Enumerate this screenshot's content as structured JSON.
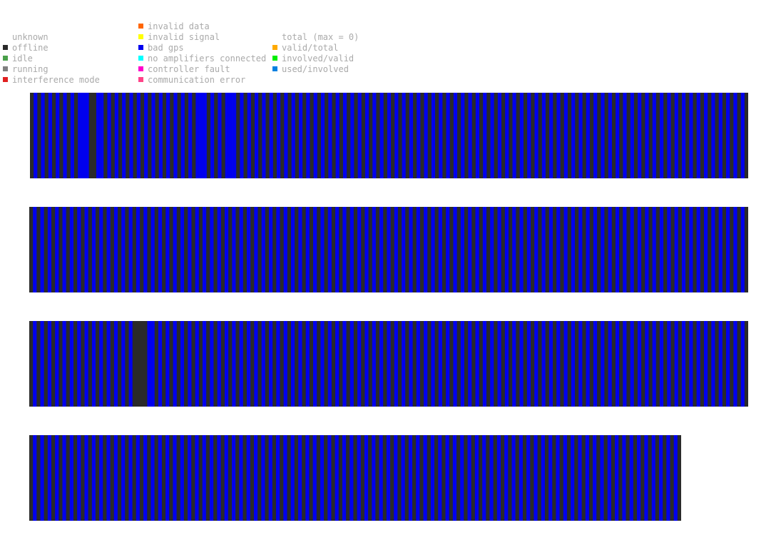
{
  "legend": {
    "columns": [
      [
        {
          "label": "unknown",
          "color": ""
        },
        {
          "label": "offline",
          "color": "#2a2a2a"
        },
        {
          "label": "idle",
          "color": "#4aa04a"
        },
        {
          "label": "running",
          "color": "#808080"
        },
        {
          "label": "interference mode",
          "color": "#e02020"
        }
      ],
      [
        {
          "label": "invalid data",
          "color": "#ff6600"
        },
        {
          "label": "invalid signal",
          "color": "#ffff00"
        },
        {
          "label": "bad gps",
          "color": "#0000ee"
        },
        {
          "label": "no amplifiers connected",
          "color": "#00ffff"
        },
        {
          "label": "controller fault",
          "color": "#ff00cc"
        },
        {
          "label": "communication error",
          "color": "#ff4488"
        }
      ],
      [
        {
          "label": "total (max = 0)",
          "color": ""
        },
        {
          "label": "valid/total",
          "color": "#ffaa00"
        },
        {
          "label": "involved/valid",
          "color": "#00ee00"
        },
        {
          "label": "used/involved",
          "color": "#0080e0"
        }
      ]
    ]
  },
  "chart_data": {
    "type": "heatmap",
    "colors": {
      "bad_gps": "#0000ee",
      "offline": "#2a2a2a"
    },
    "strips": [
      {
        "offline_stations": [
          0,
          2,
          4,
          6,
          8,
          10,
          12,
          16,
          17,
          20,
          22,
          24,
          26,
          28,
          30,
          32,
          34,
          36,
          38,
          40,
          42,
          44,
          48,
          50,
          52,
          56,
          58,
          60,
          62,
          64,
          66,
          68,
          70,
          72,
          74,
          76,
          78,
          80,
          82,
          84,
          86,
          88,
          90,
          92,
          94,
          96,
          98,
          100,
          102,
          104,
          106,
          108,
          110,
          112,
          114,
          116,
          118,
          120,
          122,
          124,
          126,
          128,
          130,
          132,
          134,
          136,
          138,
          140,
          142,
          144,
          146,
          148,
          150,
          152,
          154,
          156,
          158,
          160,
          162,
          164,
          166,
          168,
          170,
          172,
          174,
          176,
          178,
          180,
          182,
          184,
          186,
          188,
          190,
          192,
          194
        ]
      },
      {
        "offline_stations": [
          0,
          2,
          4,
          6,
          8,
          10,
          12,
          14,
          16,
          18,
          20,
          22,
          24,
          26,
          28,
          30,
          32,
          34,
          36,
          38,
          40,
          42,
          44,
          46,
          48,
          50,
          52,
          54,
          56,
          58,
          60,
          62,
          64,
          66,
          68,
          70,
          72,
          74,
          76,
          78,
          80,
          82,
          84,
          86,
          88,
          90,
          92,
          94,
          96,
          98,
          100,
          102,
          104,
          106,
          108,
          110,
          112,
          114,
          116,
          118,
          120,
          122,
          124,
          126,
          128,
          130,
          132,
          134,
          136,
          138,
          140,
          142,
          144,
          146,
          148,
          150,
          152,
          154,
          156,
          158,
          160,
          162,
          164,
          166,
          168,
          170,
          172,
          174,
          176,
          178,
          180,
          182,
          184,
          186,
          188,
          190,
          192,
          194
        ]
      },
      {
        "offline_stations": [
          0,
          2,
          4,
          6,
          8,
          10,
          12,
          14,
          16,
          18,
          20,
          22,
          24,
          26,
          28,
          29,
          30,
          31,
          34,
          36,
          38,
          40,
          42,
          44,
          46,
          48,
          50,
          52,
          54,
          56,
          58,
          60,
          62,
          64,
          66,
          68,
          70,
          72,
          74,
          76,
          78,
          80,
          82,
          84,
          86,
          88,
          90,
          92,
          94,
          96,
          98,
          100,
          102,
          104,
          106,
          108,
          110,
          112,
          114,
          116,
          118,
          120,
          122,
          124,
          126,
          128,
          130,
          132,
          134,
          136,
          138,
          140,
          142,
          144,
          146,
          148,
          150,
          152,
          154,
          156,
          158,
          160,
          162,
          164,
          166,
          168,
          170,
          172,
          174,
          176,
          178,
          180,
          182,
          184,
          186,
          188,
          190,
          192,
          194
        ]
      },
      {
        "offline_stations": [
          0,
          2,
          4,
          6,
          8,
          10,
          12,
          14,
          16,
          18,
          20,
          22,
          24,
          26,
          28,
          30,
          32,
          34,
          36,
          38,
          40,
          42,
          44,
          46,
          48,
          50,
          52,
          54,
          56,
          58,
          60,
          62,
          64,
          66,
          68,
          70,
          72,
          74,
          76,
          78,
          80,
          82,
          84,
          86,
          88,
          90,
          92,
          94,
          96,
          98,
          100,
          102,
          104,
          106,
          108,
          110,
          112,
          114,
          116,
          118,
          120,
          122,
          124,
          126,
          128,
          130,
          132,
          134,
          136,
          138,
          140,
          142,
          144,
          146,
          148,
          150,
          152,
          154,
          156,
          158,
          160,
          162,
          164,
          166,
          168,
          170,
          172,
          174,
          176
        ]
      }
    ],
    "station_counts": [
      195,
      195,
      195,
      177
    ]
  }
}
